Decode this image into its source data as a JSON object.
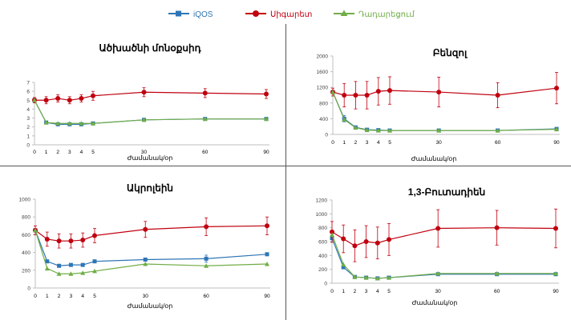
{
  "legend": {
    "items": [
      {
        "label": "iQOS",
        "color": "#2e75b6",
        "marker": "square"
      },
      {
        "label": "Սիգարետ",
        "color": "#c0000f",
        "marker": "circle"
      },
      {
        "label": "Դադարեցում",
        "color": "#70ad47",
        "marker": "triangle"
      }
    ]
  },
  "colors": {
    "iqos": "#2e75b6",
    "cigarette": "#c0000f",
    "cessation": "#70ad47",
    "axis": "#bfbfbf",
    "divider": "#555555"
  },
  "chart_data": [
    {
      "type": "line",
      "title": "Ածխածնի մոնօքսիդ",
      "xlabel": "Ժամանակ/օր",
      "ylabel": "",
      "ylim": [
        0,
        7
      ],
      "yticks": [
        0,
        1,
        2,
        3,
        4,
        5,
        6,
        7
      ],
      "xtick_labels": [
        "0",
        "1",
        "2",
        "3",
        "4",
        "5",
        "30",
        "60",
        "90"
      ],
      "series": [
        {
          "name": "iQOS",
          "x": [
            0,
            1,
            2,
            3,
            4,
            5,
            30,
            60,
            90
          ],
          "values": [
            5.0,
            2.5,
            2.3,
            2.3,
            2.3,
            2.4,
            2.8,
            2.9,
            2.9
          ],
          "err": [
            0,
            0,
            0,
            0,
            0,
            0,
            0,
            0,
            0
          ]
        },
        {
          "name": "Սիգարետ",
          "x": [
            0,
            1,
            2,
            3,
            4,
            5,
            30,
            60,
            90
          ],
          "values": [
            5.0,
            5.0,
            5.2,
            5.0,
            5.2,
            5.5,
            5.9,
            5.8,
            5.7
          ],
          "err": [
            0.3,
            0.4,
            0.4,
            0.4,
            0.4,
            0.5,
            0.5,
            0.5,
            0.5
          ]
        },
        {
          "name": "Դադարեցում",
          "x": [
            0,
            1,
            2,
            3,
            4,
            5,
            30,
            60,
            90
          ],
          "values": [
            5.0,
            2.5,
            2.4,
            2.4,
            2.4,
            2.4,
            2.8,
            2.9,
            2.9
          ],
          "err": [
            0,
            0,
            0,
            0,
            0,
            0,
            0,
            0,
            0
          ]
        }
      ]
    },
    {
      "type": "line",
      "title": "Բենզոլ",
      "xlabel": "Ժամանակ/օր",
      "ylabel": "",
      "ylim": [
        0,
        2000
      ],
      "yticks": [
        0,
        400,
        800,
        1200,
        1600,
        2000
      ],
      "xtick_labels": [
        "0",
        "1",
        "2",
        "3",
        "4",
        "5",
        "30",
        "60",
        "90"
      ],
      "series": [
        {
          "name": "iQOS",
          "x": [
            0,
            1,
            2,
            3,
            4,
            5,
            30,
            60,
            90
          ],
          "values": [
            1080,
            400,
            180,
            120,
            110,
            100,
            100,
            100,
            140
          ],
          "err": [
            0,
            80,
            0,
            0,
            0,
            0,
            0,
            0,
            0
          ]
        },
        {
          "name": "Սիգարետ",
          "x": [
            0,
            1,
            2,
            3,
            4,
            5,
            30,
            60,
            90
          ],
          "values": [
            1080,
            1000,
            1000,
            1000,
            1100,
            1120,
            1080,
            1000,
            1180
          ],
          "err": [
            100,
            300,
            350,
            350,
            350,
            350,
            380,
            320,
            400
          ]
        },
        {
          "name": "Դադարեցում",
          "x": [
            0,
            1,
            2,
            3,
            4,
            5,
            30,
            60,
            90
          ],
          "values": [
            1080,
            380,
            170,
            110,
            100,
            100,
            100,
            100,
            130
          ],
          "err": [
            0,
            0,
            0,
            0,
            0,
            0,
            0,
            0,
            0
          ]
        }
      ]
    },
    {
      "type": "line",
      "title": "Ակրոլեին",
      "xlabel": "Ժամանակ/օր",
      "ylabel": "",
      "ylim": [
        0,
        1000
      ],
      "yticks": [
        0,
        200,
        400,
        600,
        800,
        1000
      ],
      "xtick_labels": [
        "0",
        "1",
        "2",
        "3",
        "4",
        "5",
        "30",
        "60",
        "90"
      ],
      "series": [
        {
          "name": "iQOS",
          "x": [
            0,
            1,
            2,
            3,
            4,
            5,
            30,
            60,
            90
          ],
          "values": [
            650,
            300,
            250,
            260,
            260,
            300,
            320,
            330,
            380
          ],
          "err": [
            0,
            0,
            0,
            0,
            0,
            0,
            0,
            40,
            0
          ]
        },
        {
          "name": "Սիգարետ",
          "x": [
            0,
            1,
            2,
            3,
            4,
            5,
            30,
            60,
            90
          ],
          "values": [
            650,
            550,
            530,
            530,
            540,
            590,
            660,
            690,
            700
          ],
          "err": [
            50,
            80,
            80,
            80,
            80,
            80,
            90,
            100,
            100
          ]
        },
        {
          "name": "Դադարեցում",
          "x": [
            0,
            1,
            2,
            3,
            4,
            5,
            30,
            60,
            90
          ],
          "values": [
            650,
            220,
            160,
            160,
            170,
            190,
            270,
            250,
            270
          ],
          "err": [
            0,
            0,
            0,
            0,
            0,
            0,
            0,
            0,
            0
          ]
        }
      ]
    },
    {
      "type": "line",
      "title": "1,3-Բուտադիեն",
      "xlabel": "Ժամանակ/օր",
      "ylabel": "",
      "ylim": [
        0,
        1200
      ],
      "yticks": [
        0,
        200,
        400,
        600,
        800,
        1000,
        1200
      ],
      "xtick_labels": [
        "0",
        "1",
        "2",
        "3",
        "4",
        "5",
        "30",
        "60",
        "90"
      ],
      "series": [
        {
          "name": "iQOS",
          "x": [
            0,
            1,
            2,
            3,
            4,
            5,
            30,
            60,
            90
          ],
          "values": [
            650,
            230,
            90,
            80,
            70,
            80,
            130,
            130,
            130
          ],
          "err": [
            0,
            0,
            0,
            0,
            0,
            0,
            0,
            0,
            0
          ]
        },
        {
          "name": "Սիգարետ",
          "x": [
            0,
            1,
            2,
            3,
            4,
            5,
            30,
            60,
            90
          ],
          "values": [
            740,
            640,
            540,
            600,
            580,
            630,
            790,
            800,
            790
          ],
          "err": [
            150,
            200,
            230,
            230,
            230,
            230,
            270,
            250,
            280
          ]
        },
        {
          "name": "Դադարեցում",
          "x": [
            0,
            1,
            2,
            3,
            4,
            5,
            30,
            60,
            90
          ],
          "values": [
            700,
            270,
            90,
            80,
            70,
            80,
            140,
            140,
            140
          ],
          "err": [
            0,
            0,
            0,
            0,
            0,
            0,
            0,
            0,
            0
          ]
        }
      ]
    }
  ]
}
